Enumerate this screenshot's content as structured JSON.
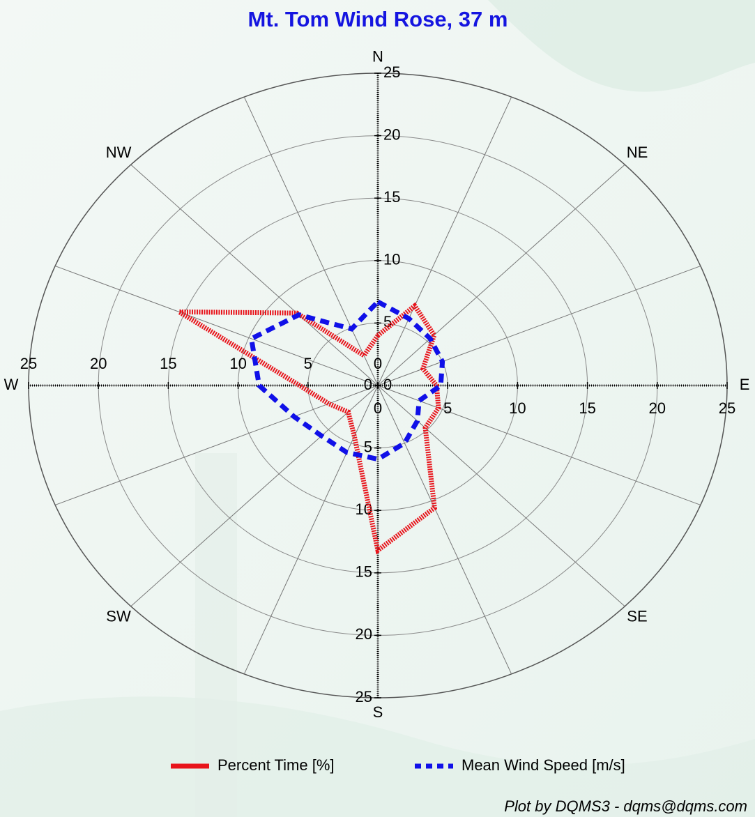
{
  "chart_data": {
    "type": "polar",
    "title": "Mt. Tom Wind Rose, 37 m",
    "x": [
      0,
      22.5,
      45,
      67.5,
      90,
      112.5,
      135,
      157.5,
      180,
      202.5,
      225,
      247.5,
      270,
      292.5,
      315,
      337.5
    ],
    "series": [
      {
        "name": "Percent Time [%]",
        "color": "#e8141b",
        "style": "hatched",
        "values": [
          4.0,
          6.9,
          5.7,
          3.5,
          4.2,
          4.7,
          4.8,
          10.6,
          13.2,
          4.4,
          3.0,
          3.8,
          5.6,
          15.4,
          8.2,
          2.6
        ]
      },
      {
        "name": "Mean Wind Speed [m/s]",
        "color": "#1010e8",
        "style": "dashed",
        "values": [
          6.7,
          5.8,
          5.3,
          5.0,
          4.5,
          3.2,
          4.0,
          5.0,
          5.9,
          5.8,
          5.7,
          6.5,
          8.5,
          9.8,
          8.0,
          4.9
        ]
      }
    ],
    "rlim": [
      0,
      25
    ],
    "rticks": [
      0,
      5,
      10,
      15,
      20,
      25
    ],
    "xticks": [
      {
        "value": 0,
        "label": "N"
      },
      {
        "value": 45,
        "label": "NE"
      },
      {
        "value": 90,
        "label": "E"
      },
      {
        "value": 135,
        "label": "SE"
      },
      {
        "value": 180,
        "label": "S"
      },
      {
        "value": 225,
        "label": "SW"
      },
      {
        "value": 270,
        "label": "W"
      },
      {
        "value": 315,
        "label": "NW"
      }
    ],
    "grid": true,
    "annotation": "Plot by DQMS3 - dqms@dqms.com"
  }
}
